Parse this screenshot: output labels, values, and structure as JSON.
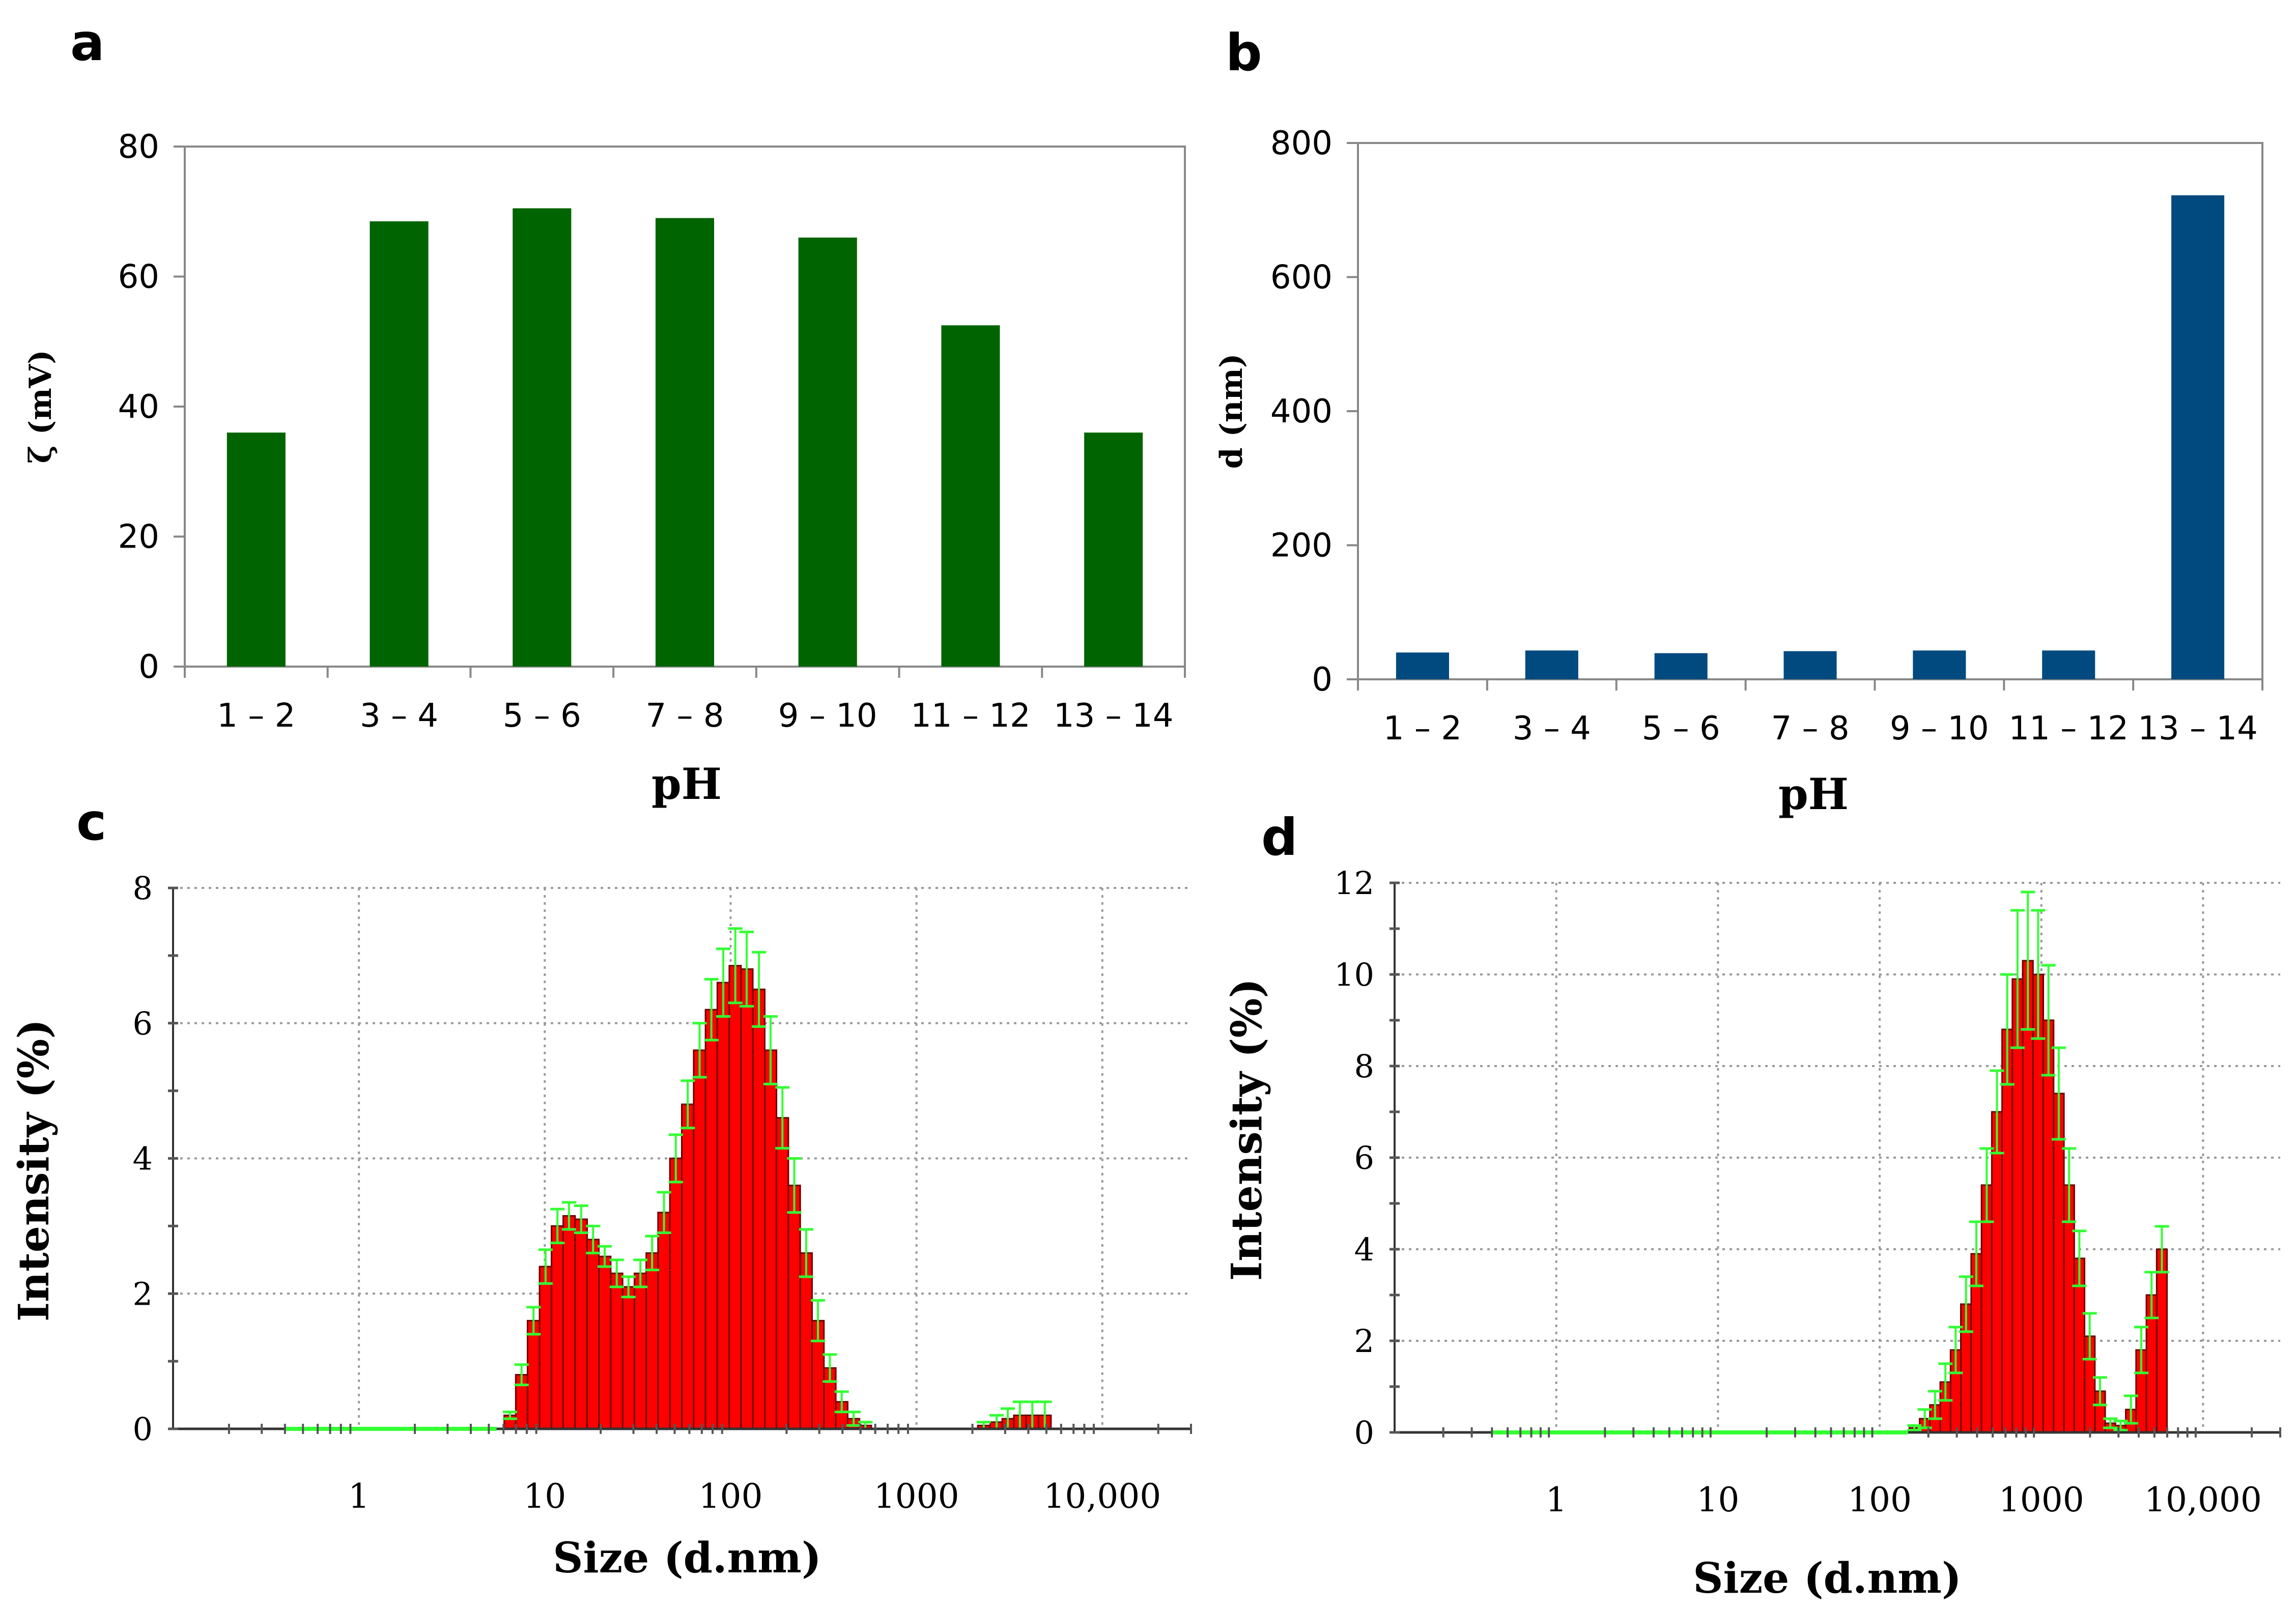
{
  "chart_data": [
    {
      "panel": "a",
      "type": "bar",
      "xlabel": "pH",
      "ylabel": "ζ (mV)",
      "categories": [
        "1 – 2",
        "3 – 4",
        "5 – 6",
        "7 – 8",
        "9 – 10",
        "11 – 12",
        "13 – 14"
      ],
      "values": [
        36,
        68.5,
        70.5,
        69,
        66,
        52.5,
        36
      ],
      "ylim": [
        0,
        80
      ],
      "yticks": [
        0,
        20,
        40,
        60,
        80
      ],
      "bar_color": "#006400",
      "grid": false
    },
    {
      "panel": "b",
      "type": "bar",
      "xlabel": "pH",
      "ylabel": "d (nm)",
      "categories": [
        "1 – 2",
        "3 – 4",
        "5 – 6",
        "7 – 8",
        "9 – 10",
        "11 – 12",
        "13 – 14"
      ],
      "values": [
        40,
        43,
        39,
        42,
        43,
        43,
        722
      ],
      "ylim": [
        0,
        800
      ],
      "yticks": [
        0,
        200,
        400,
        600,
        800
      ],
      "bar_color": "#004A80",
      "grid": false
    },
    {
      "panel": "c",
      "type": "bar",
      "xscale": "log",
      "xlabel": "Size (d.nm)",
      "ylabel": "Intensity (%)",
      "xlim": [
        0.1,
        30000
      ],
      "ylim": [
        0,
        8
      ],
      "xticks": [
        {
          "value": 1,
          "label": "1"
        },
        {
          "value": 10,
          "label": "10"
        },
        {
          "value": 100,
          "label": "100"
        },
        {
          "value": 1000,
          "label": "1000"
        },
        {
          "value": 10000,
          "label": "10,000"
        }
      ],
      "yticks": [
        0,
        2,
        4,
        6,
        8
      ],
      "grid": true,
      "bar_color": "#FF0000",
      "error_color": "#33FF33",
      "x": [
        6.5,
        7.5,
        8.7,
        10.1,
        11.7,
        13.5,
        15.7,
        18.2,
        21.0,
        24.4,
        28.2,
        32.7,
        37.8,
        43.8,
        50.7,
        58.8,
        68.1,
        78.8,
        91.3,
        106,
        122,
        142,
        164,
        190,
        220,
        255,
        295,
        342,
        396,
        459,
        531,
        2300,
        2700,
        3100,
        3600,
        4200,
        4900
      ],
      "values": [
        0.2,
        0.8,
        1.6,
        2.4,
        3.0,
        3.15,
        3.1,
        2.8,
        2.55,
        2.3,
        2.1,
        2.3,
        2.6,
        3.2,
        4.0,
        4.8,
        5.6,
        6.2,
        6.6,
        6.85,
        6.8,
        6.5,
        5.6,
        4.6,
        3.6,
        2.6,
        1.6,
        0.9,
        0.4,
        0.15,
        0.05,
        0.05,
        0.1,
        0.15,
        0.2,
        0.2,
        0.2
      ],
      "errors": [
        0.05,
        0.15,
        0.2,
        0.25,
        0.25,
        0.2,
        0.2,
        0.2,
        0.15,
        0.2,
        0.15,
        0.2,
        0.25,
        0.3,
        0.35,
        0.35,
        0.4,
        0.45,
        0.5,
        0.55,
        0.55,
        0.55,
        0.5,
        0.45,
        0.4,
        0.35,
        0.3,
        0.2,
        0.15,
        0.1,
        0.05,
        0.05,
        0.1,
        0.15,
        0.2,
        0.2,
        0.2
      ],
      "baseline_x": [
        0.4,
        5.5
      ]
    },
    {
      "panel": "d",
      "type": "bar",
      "xscale": "log",
      "xlabel": "Size (d.nm)",
      "ylabel": "Intensity (%)",
      "xlim": [
        0.1,
        30000
      ],
      "ylim": [
        0,
        12
      ],
      "xticks": [
        {
          "value": 1,
          "label": "1"
        },
        {
          "value": 10,
          "label": "10"
        },
        {
          "value": 100,
          "label": "100"
        },
        {
          "value": 1000,
          "label": "1000"
        },
        {
          "value": 10000,
          "label": "10,000"
        }
      ],
      "yticks": [
        0,
        2,
        4,
        6,
        8,
        10,
        12
      ],
      "grid": true,
      "bar_color": "#FF0000",
      "error_color": "#33FF33",
      "x": [
        164,
        190,
        220,
        255,
        295,
        342,
        396,
        459,
        531,
        615,
        712,
        825,
        955,
        1106,
        1281,
        1484,
        1718,
        1990,
        2305,
        2669,
        3091,
        3580,
        4146,
        4801,
        5560
      ],
      "values": [
        0.1,
        0.3,
        0.6,
        1.1,
        1.8,
        2.8,
        3.9,
        5.4,
        7.0,
        8.8,
        9.9,
        10.3,
        10.0,
        9.0,
        7.4,
        5.4,
        3.8,
        2.1,
        0.9,
        0.2,
        0.15,
        0.5,
        1.8,
        3.0,
        4.0
      ],
      "errors": [
        0.05,
        0.2,
        0.3,
        0.4,
        0.5,
        0.6,
        0.7,
        0.8,
        0.9,
        1.2,
        1.5,
        1.5,
        1.4,
        1.2,
        1.0,
        0.8,
        0.6,
        0.5,
        0.3,
        0.1,
        0.1,
        0.3,
        0.5,
        0.5,
        0.5
      ],
      "baseline_x": [
        0.4,
        150
      ]
    }
  ],
  "panels": {
    "a": {
      "letter": "a",
      "ylabel": "ζ (mV)",
      "xlabel": "pH"
    },
    "b": {
      "letter": "b",
      "ylabel": "d (nm)",
      "xlabel": "pH"
    },
    "c": {
      "letter": "c",
      "ylabel": "Intensity (%)",
      "xlabel": "Size (d.nm)"
    },
    "d": {
      "letter": "d",
      "ylabel": "Intensity (%)",
      "xlabel": "Size (d.nm)"
    }
  }
}
